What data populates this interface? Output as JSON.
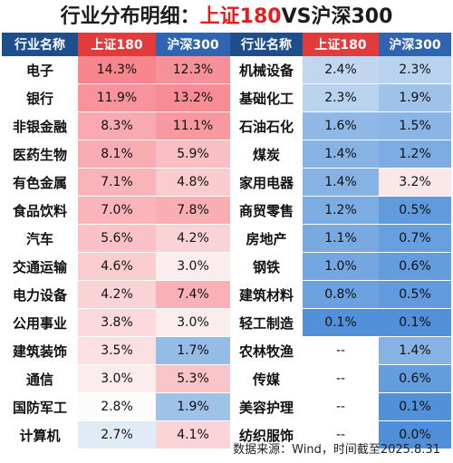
{
  "title": {
    "prefix": "行业分布明细：",
    "highlight": "上证180",
    "suffix": "VS沪深300"
  },
  "header": [
    "行业名称",
    "上证180",
    "沪深300",
    "行业名称",
    "上证180",
    "沪深300"
  ],
  "colors": {
    "header_navy": "#1f4e8c",
    "header_red": "#e23b3b",
    "header_blue": "#2f64b3",
    "high_red": "#f7868f",
    "mid_white": "#fcfcfc",
    "low_blue": "#4f8fd9"
  },
  "chart_data": {
    "type": "table",
    "title": "行业分布明细：上证180VS沪深300",
    "columns": [
      "行业名称",
      "上证180",
      "沪深300"
    ],
    "left_rows": [
      {
        "industry": "电子",
        "sh180": "14.3%",
        "hs300": "12.3%"
      },
      {
        "industry": "银行",
        "sh180": "11.9%",
        "hs300": "13.2%"
      },
      {
        "industry": "非银金融",
        "sh180": "8.3%",
        "hs300": "11.1%"
      },
      {
        "industry": "医药生物",
        "sh180": "8.1%",
        "hs300": "5.9%"
      },
      {
        "industry": "有色金属",
        "sh180": "7.1%",
        "hs300": "4.8%"
      },
      {
        "industry": "食品饮料",
        "sh180": "7.0%",
        "hs300": "7.8%"
      },
      {
        "industry": "汽车",
        "sh180": "5.6%",
        "hs300": "4.2%"
      },
      {
        "industry": "交通运输",
        "sh180": "4.6%",
        "hs300": "3.0%"
      },
      {
        "industry": "电力设备",
        "sh180": "4.2%",
        "hs300": "7.4%"
      },
      {
        "industry": "公用事业",
        "sh180": "3.8%",
        "hs300": "3.0%"
      },
      {
        "industry": "建筑装饰",
        "sh180": "3.5%",
        "hs300": "1.7%"
      },
      {
        "industry": "通信",
        "sh180": "3.0%",
        "hs300": "5.3%"
      },
      {
        "industry": "国防军工",
        "sh180": "2.8%",
        "hs300": "1.9%"
      },
      {
        "industry": "计算机",
        "sh180": "2.7%",
        "hs300": "4.1%"
      }
    ],
    "right_rows": [
      {
        "industry": "机械设备",
        "sh180": "2.4%",
        "hs300": "2.3%"
      },
      {
        "industry": "基础化工",
        "sh180": "2.3%",
        "hs300": "1.9%"
      },
      {
        "industry": "石油石化",
        "sh180": "1.6%",
        "hs300": "1.5%"
      },
      {
        "industry": "煤炭",
        "sh180": "1.4%",
        "hs300": "1.2%"
      },
      {
        "industry": "家用电器",
        "sh180": "1.4%",
        "hs300": "3.2%"
      },
      {
        "industry": "商贸零售",
        "sh180": "1.2%",
        "hs300": "0.5%"
      },
      {
        "industry": "房地产",
        "sh180": "1.1%",
        "hs300": "0.7%"
      },
      {
        "industry": "钢铁",
        "sh180": "1.0%",
        "hs300": "0.6%"
      },
      {
        "industry": "建筑材料",
        "sh180": "0.8%",
        "hs300": "0.5%"
      },
      {
        "industry": "轻工制造",
        "sh180": "0.1%",
        "hs300": "0.1%"
      },
      {
        "industry": "农林牧渔",
        "sh180": "--",
        "hs300": "1.4%"
      },
      {
        "industry": "传媒",
        "sh180": "--",
        "hs300": "0.6%"
      },
      {
        "industry": "美容护理",
        "sh180": "--",
        "hs300": "0.1%"
      },
      {
        "industry": "纺织服饰",
        "sh180": "--",
        "hs300": "0.0%"
      }
    ]
  },
  "footer": "数据来源：Wind，时间截至2025.8.31"
}
